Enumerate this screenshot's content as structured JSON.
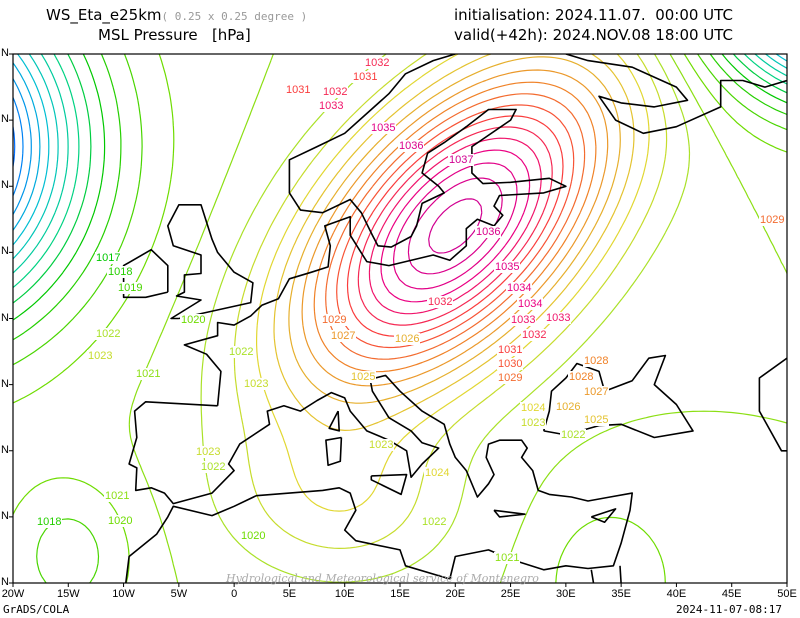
{
  "header": {
    "model": "WS_Eta_e25km",
    "resolution": "( 0.25 x 0.25 degree )",
    "field": "MSL Pressure",
    "unit": "[hPa]",
    "init_label": "initialisation:",
    "init_value": "2024.11.07.  00:00 UTC",
    "valid_label": "valid(+42h):",
    "valid_value": "2024.NOV.08 18:00 UTC"
  },
  "axes": {
    "lon_ticks": [
      "20W",
      "15W",
      "10W",
      "5W",
      "0",
      "5E",
      "10E",
      "15E",
      "20E",
      "25E",
      "30E",
      "35E",
      "40E",
      "45E",
      "50E"
    ],
    "lat_ticks": [
      "N",
      "N",
      "N",
      "N",
      "N",
      "N",
      "N",
      "N",
      "N"
    ]
  },
  "footer": {
    "software": "GrADS/COLA",
    "generated": "2024-11-07-08:17",
    "watermark": "Hydrological and Meteorological service of Montenegro"
  },
  "contour_labels": [
    "1017",
    "1018",
    "1019",
    "1020",
    "1022",
    "1023",
    "1021",
    "1022",
    "1023",
    "1023",
    "1022",
    "1021",
    "1020",
    "1018",
    "1024",
    "1025",
    "1023",
    "1022",
    "1026",
    "1027",
    "1028",
    "1029",
    "1029",
    "1031",
    "1032",
    "1033",
    "1033",
    "1034",
    "1035",
    "1036",
    "1037",
    "1036",
    "1035",
    "1034",
    "1033",
    "1032",
    "1032",
    "1031",
    "1030",
    "1029",
    "1028",
    "1027",
    "1026",
    "1025",
    "1024",
    "1023",
    "1022",
    "1021",
    "1020",
    "1031",
    "1032"
  ],
  "colors": {
    "coast": "#000000",
    "frame": "#000000"
  }
}
